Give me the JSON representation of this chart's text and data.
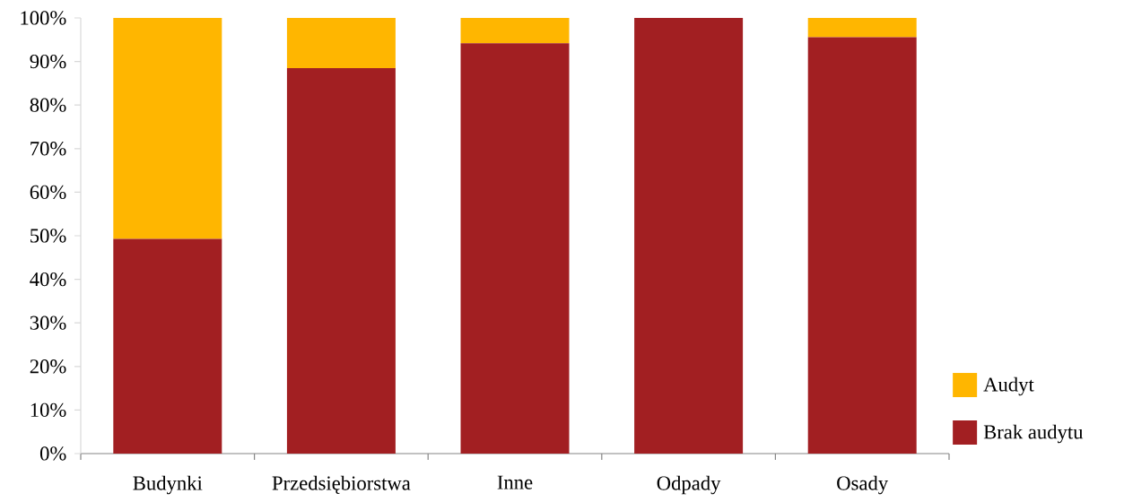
{
  "chart_data": {
    "type": "bar",
    "stacked": true,
    "categories": [
      "Budynki",
      "Przedsiębiorstwa",
      "Inne",
      "Odpady",
      "Osady"
    ],
    "series": [
      {
        "name": "Brak audytu",
        "color": "#a21f22",
        "values": [
          49.3,
          88.5,
          94.2,
          100,
          95.6
        ]
      },
      {
        "name": "Audyt",
        "color": "#ffb600",
        "values": [
          50.7,
          11.5,
          5.8,
          0,
          4.4
        ]
      }
    ],
    "ylim": [
      0,
      100
    ],
    "yticks": [
      {
        "value": 0,
        "label": "0%"
      },
      {
        "value": 10,
        "label": "10%"
      },
      {
        "value": 20,
        "label": "20%"
      },
      {
        "value": 30,
        "label": "30%"
      },
      {
        "value": 40,
        "label": "40%"
      },
      {
        "value": 50,
        "label": "50%"
      },
      {
        "value": 60,
        "label": "60%"
      },
      {
        "value": 70,
        "label": "70%"
      },
      {
        "value": 80,
        "label": "80%"
      },
      {
        "value": 90,
        "label": "90%"
      },
      {
        "value": 100,
        "label": "100%"
      }
    ],
    "legend": "bottom right"
  }
}
